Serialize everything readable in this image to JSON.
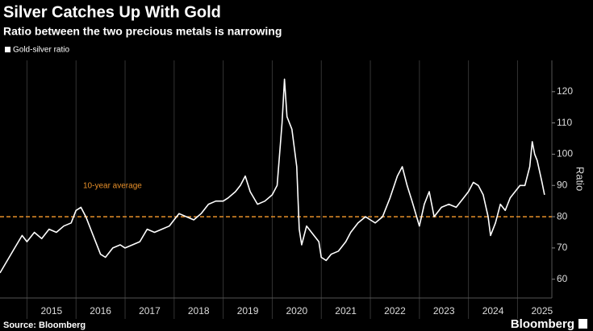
{
  "chart_data": {
    "type": "line",
    "title": "Silver Catches Up With Gold",
    "subtitle": "Ratio between the two precious metals is narrowing",
    "ylabel": "Ratio",
    "source": "Source: Bloomberg",
    "brand": "Bloomberg",
    "xlim": [
      2014.45,
      2025.7
    ],
    "xticks": [
      {
        "value": 2015.5,
        "label": "2015"
      },
      {
        "value": 2016.5,
        "label": "2016"
      },
      {
        "value": 2017.5,
        "label": "2017"
      },
      {
        "value": 2018.5,
        "label": "2018"
      },
      {
        "value": 2019.5,
        "label": "2019"
      },
      {
        "value": 2020.5,
        "label": "2020"
      },
      {
        "value": 2021.5,
        "label": "2021"
      },
      {
        "value": 2022.5,
        "label": "2022"
      },
      {
        "value": 2023.5,
        "label": "2023"
      },
      {
        "value": 2024.5,
        "label": "2024"
      },
      {
        "value": 2025.5,
        "label": "2025"
      }
    ],
    "ylim": [
      54,
      130
    ],
    "yticks": [
      60,
      70,
      80,
      90,
      100,
      110,
      120
    ],
    "reference_line": {
      "value": 80,
      "label": "10-year average",
      "color": "#e8902a"
    },
    "x": [
      2014.45,
      2014.6,
      2014.75,
      2014.9,
      2015.0,
      2015.15,
      2015.3,
      2015.45,
      2015.6,
      2015.75,
      2015.9,
      2016.0,
      2016.1,
      2016.2,
      2016.35,
      2016.5,
      2016.6,
      2016.75,
      2016.9,
      2017.0,
      2017.15,
      2017.3,
      2017.45,
      2017.6,
      2017.75,
      2017.9,
      2018.0,
      2018.1,
      2018.25,
      2018.4,
      2018.55,
      2018.7,
      2018.85,
      2019.0,
      2019.1,
      2019.25,
      2019.35,
      2019.45,
      2019.55,
      2019.7,
      2019.85,
      2020.0,
      2020.1,
      2020.2,
      2020.25,
      2020.3,
      2020.4,
      2020.5,
      2020.55,
      2020.6,
      2020.7,
      2020.8,
      2020.95,
      2021.0,
      2021.1,
      2021.2,
      2021.35,
      2021.5,
      2021.6,
      2021.75,
      2021.9,
      2022.0,
      2022.1,
      2022.25,
      2022.4,
      2022.55,
      2022.65,
      2022.75,
      2022.85,
      2023.0,
      2023.1,
      2023.2,
      2023.3,
      2023.45,
      2023.6,
      2023.75,
      2023.9,
      2024.0,
      2024.1,
      2024.2,
      2024.3,
      2024.4,
      2024.45,
      2024.55,
      2024.65,
      2024.75,
      2024.85,
      2024.95,
      2025.05,
      2025.15,
      2025.25,
      2025.3,
      2025.35,
      2025.4,
      2025.5,
      2025.55
    ],
    "series": [
      {
        "name": "Gold-silver ratio",
        "color": "#ffffff",
        "values": [
          62,
          66,
          70,
          74,
          72,
          75,
          73,
          76,
          75,
          77,
          78,
          82,
          83,
          80,
          74,
          68,
          67,
          70,
          71,
          70,
          71,
          72,
          76,
          75,
          76,
          77,
          79,
          81,
          80,
          79,
          81,
          84,
          85,
          85,
          86,
          88,
          90,
          93,
          88,
          84,
          85,
          87,
          90,
          110,
          124,
          112,
          108,
          96,
          76,
          71,
          77,
          75,
          72,
          67,
          66,
          68,
          69,
          72,
          75,
          78,
          80,
          79,
          78,
          80,
          86,
          93,
          96,
          90,
          85,
          77,
          84,
          88,
          80,
          83,
          84,
          83,
          86,
          88,
          91,
          90,
          87,
          80,
          74,
          78,
          84,
          82,
          86,
          88,
          90,
          90,
          96,
          104,
          100,
          98,
          91,
          87
        ]
      }
    ]
  }
}
